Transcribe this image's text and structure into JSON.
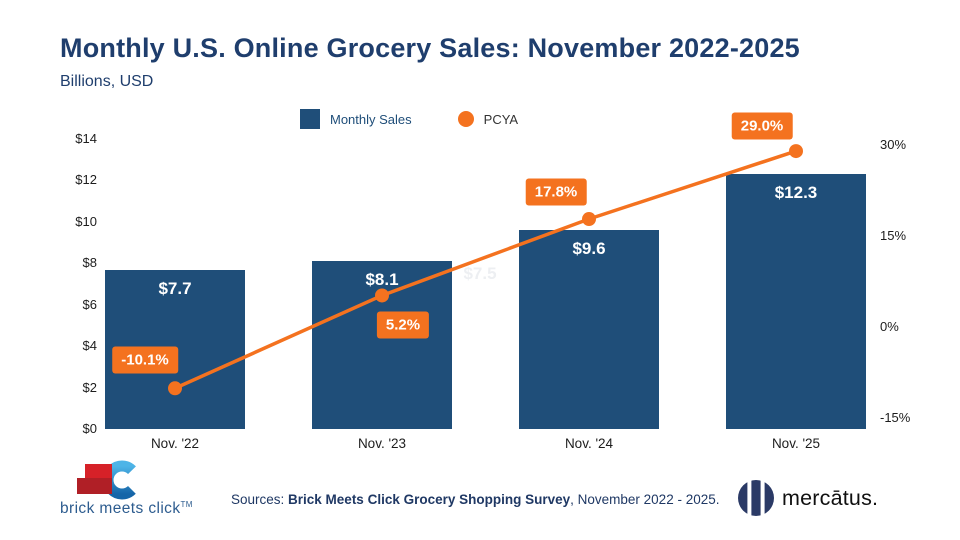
{
  "header": {
    "title": "Monthly U.S. Online Grocery Sales: November 2022-2025",
    "subtitle": "Billions, USD"
  },
  "legend": {
    "bar_label": "Monthly Sales",
    "line_label": "PCYA"
  },
  "chart_data": {
    "type": "bar",
    "categories": [
      "Nov. '22",
      "Nov. '23",
      "Nov. '24",
      "Nov. '25"
    ],
    "series": [
      {
        "name": "Monthly Sales",
        "type": "bar",
        "axis": "left",
        "values": [
          7.7,
          8.1,
          9.6,
          12.3
        ],
        "labels": [
          "$7.7",
          "$8.1",
          "$9.6",
          "$12.3"
        ],
        "color": "#1f4e79"
      },
      {
        "name": "PCYA",
        "type": "line",
        "axis": "right",
        "values": [
          -10.1,
          5.2,
          17.8,
          29.0
        ],
        "labels": [
          "-10.1%",
          "5.2%",
          "17.8%",
          "29.0%"
        ],
        "color": "#f4721f",
        "label_offsets": [
          [
            -30,
            -28
          ],
          [
            21,
            30
          ],
          [
            -33,
            -27
          ],
          [
            -34,
            -25
          ]
        ]
      }
    ],
    "left_axis": {
      "ticks": [
        "$0",
        "$2",
        "$4",
        "$6",
        "$8",
        "$10",
        "$12",
        "$14"
      ],
      "values": [
        0,
        2,
        4,
        6,
        8,
        10,
        12,
        14
      ],
      "min": 0,
      "max": 14
    },
    "right_axis": {
      "ticks": [
        "-15%",
        "0%",
        "15%",
        "30%"
      ],
      "values": [
        -15,
        0,
        15,
        30
      ],
      "min": -15,
      "max": 30
    },
    "ghost_label": {
      "text": "$7.5",
      "value": 7.5,
      "near_category_index": 1
    },
    "grid": false,
    "legend_position": "top"
  },
  "footer": {
    "sources_prefix": "Sources: ",
    "sources_bold": "Brick Meets Click Grocery Shopping Survey",
    "sources_suffix": ", November 2022 - 2025.",
    "bmc_logo_text": "brick meets click",
    "bmc_tm": "TM",
    "mercatus_text": "mercātus."
  },
  "colors": {
    "bar": "#1f4e79",
    "line": "#f4721f",
    "title": "#1f3e6d",
    "axis_text": "#1d1d1d",
    "footer_text": "#1f3864",
    "ghost": "#edeff2"
  }
}
